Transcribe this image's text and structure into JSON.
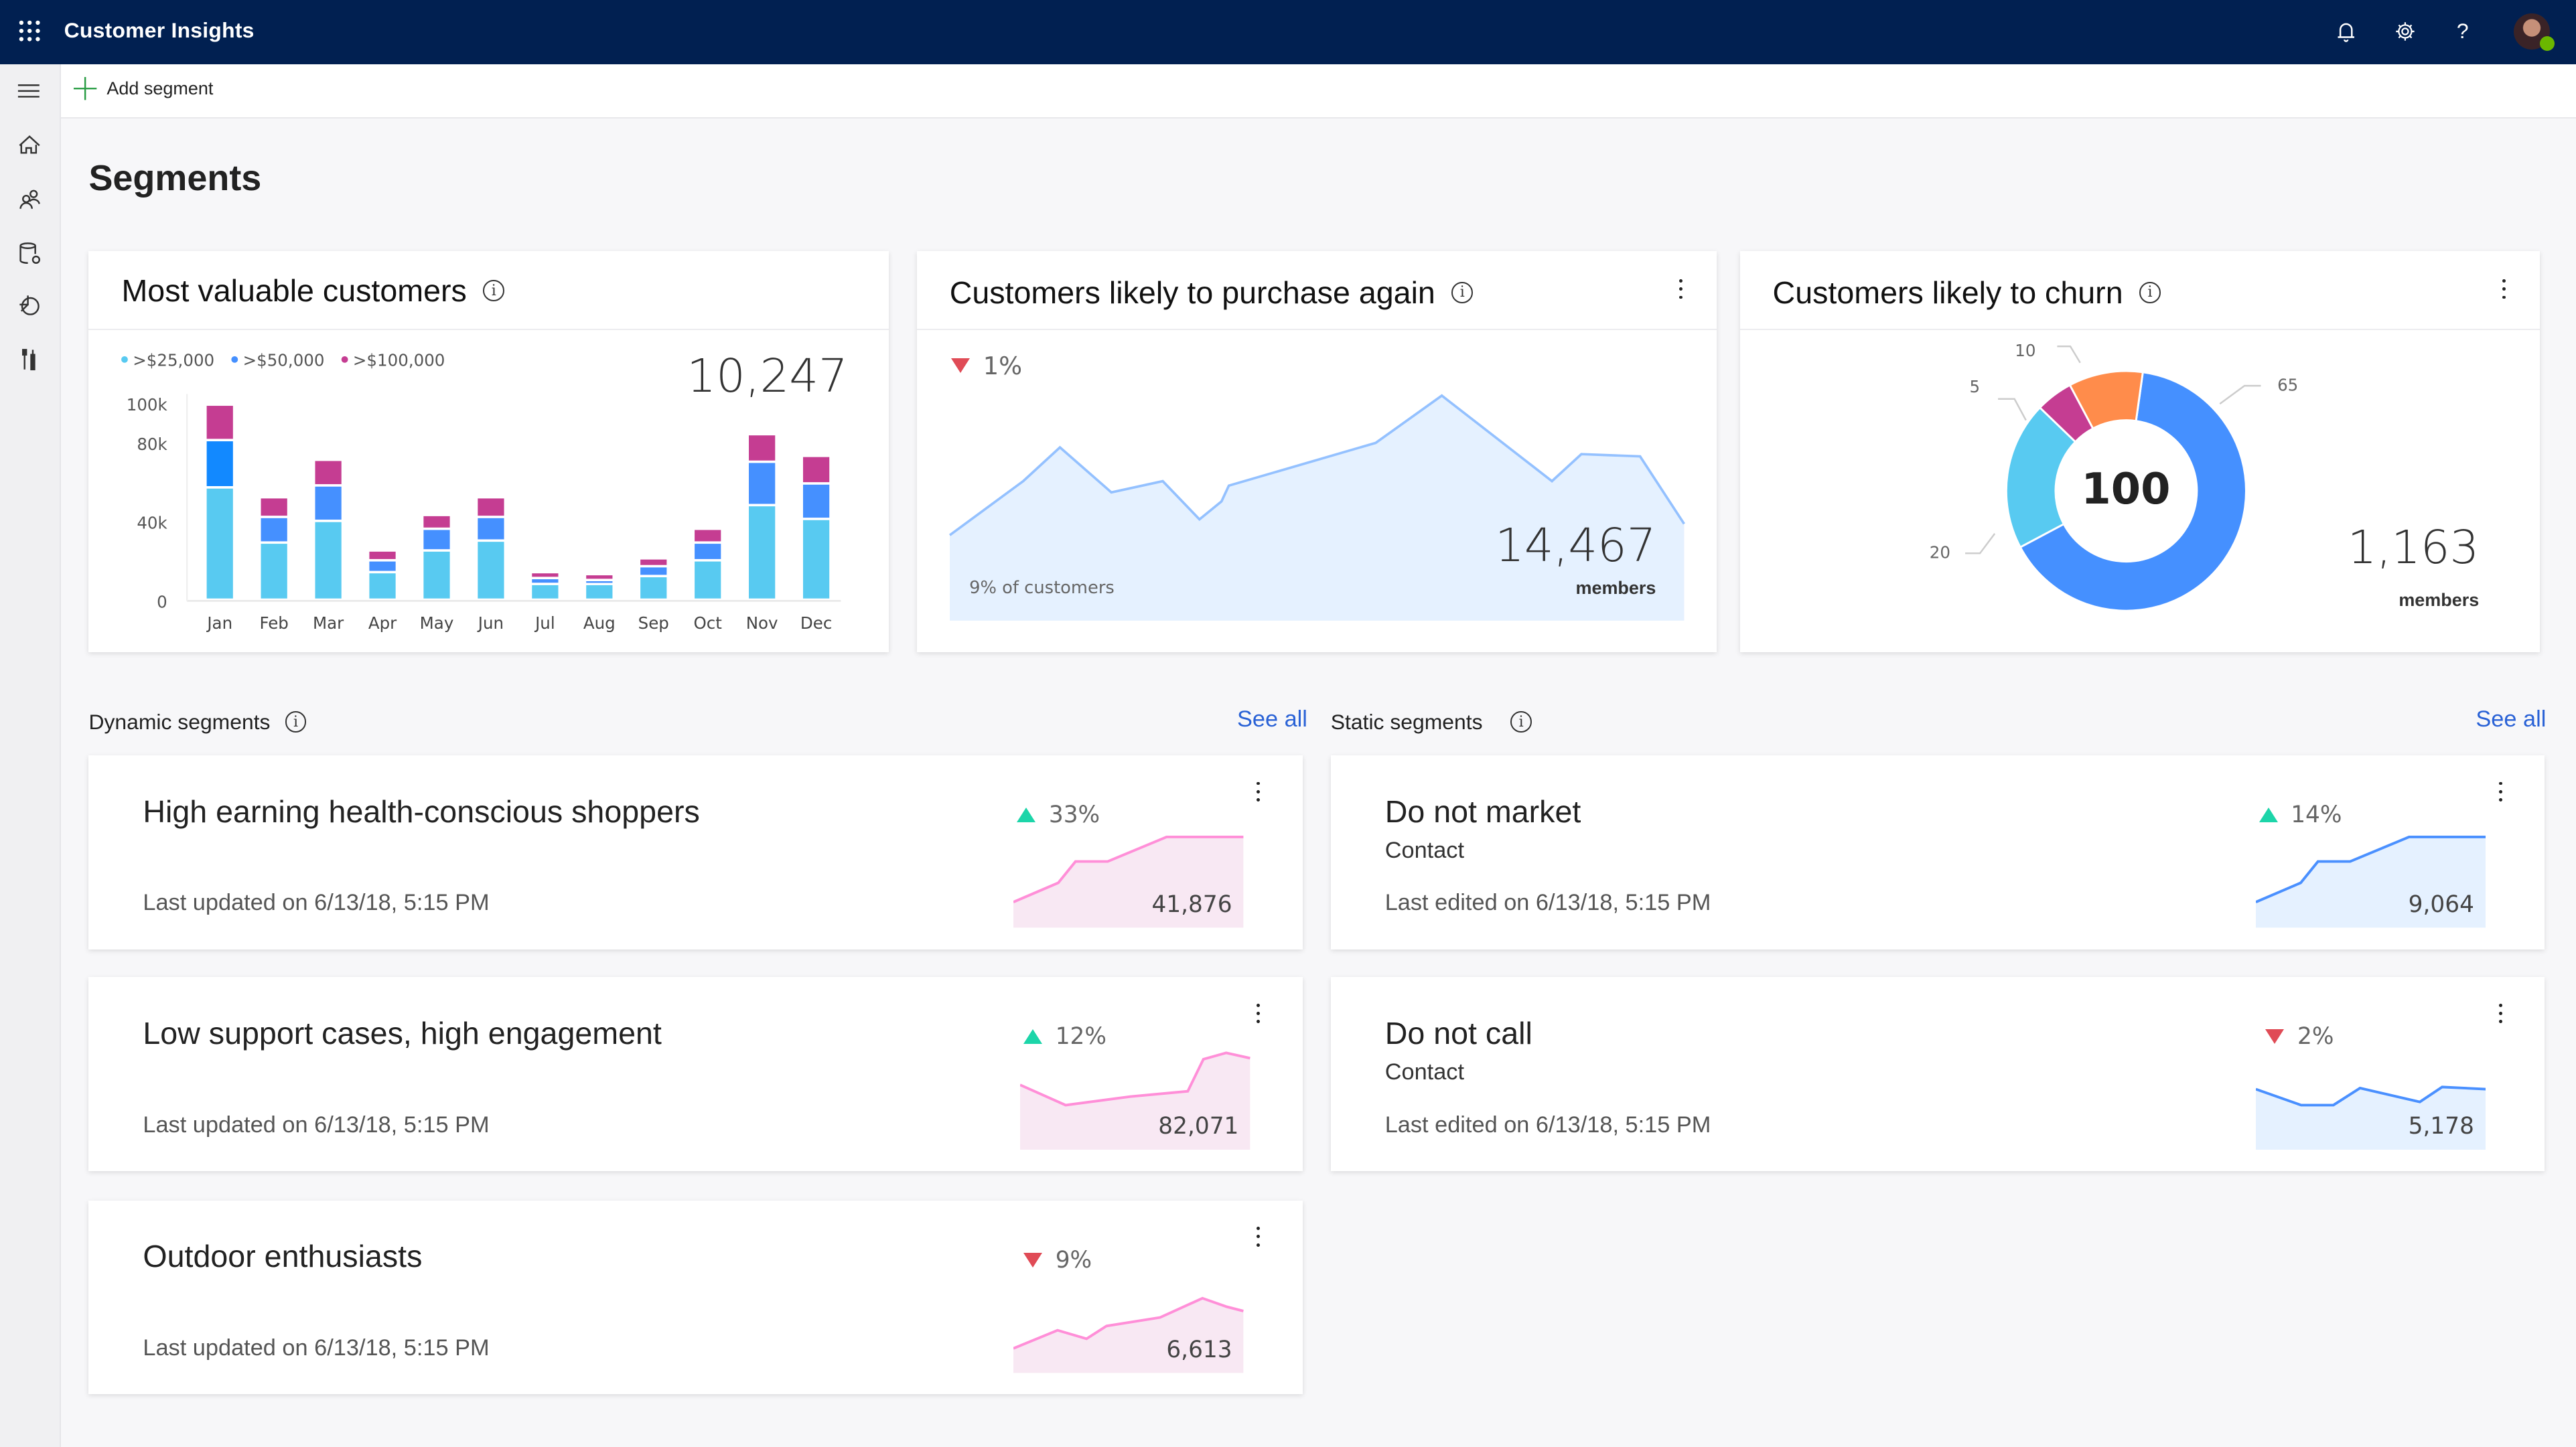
{
  "app": {
    "title": "Customer Insights",
    "avatar_status_color": "#6bb700"
  },
  "topbar_icons": [
    "waffle-icon",
    "bell-icon",
    "gear-icon",
    "help-icon",
    "avatar"
  ],
  "rail_icons": [
    "hamburger-icon",
    "home-icon",
    "people-icon",
    "database-gear-icon",
    "pie-chart-icon",
    "tools-icon"
  ],
  "command_bar": {
    "add_segment": "Add segment"
  },
  "page": {
    "title": "Segments"
  },
  "cards": {
    "valuable": {
      "title": "Most valuable customers",
      "total": "10,247"
    },
    "purchase": {
      "title": "Customers likely to purchase again",
      "trend": "1%",
      "trend_dir": "down",
      "caption": "9% of customers",
      "total": "14,467",
      "unit": "members"
    },
    "churn": {
      "title": "Customers likely to churn",
      "center": "100",
      "total": "1,163",
      "unit": "members"
    }
  },
  "chart_data": [
    {
      "type": "bar",
      "stacked": true,
      "title": "Most valuable customers",
      "categories": [
        "Jan",
        "Feb",
        "Mar",
        "Apr",
        "May",
        "Jun",
        "Jul",
        "Aug",
        "Sep",
        "Oct",
        "Nov",
        "Dec"
      ],
      "series": [
        {
          "name": ">$25,000",
          "color": "#58caf1",
          "values": [
            57,
            29,
            40,
            14,
            25,
            30,
            8,
            8,
            12,
            20,
            48,
            41
          ]
        },
        {
          "name": ">$50,000",
          "color": "#4590ff",
          "values": [
            24,
            13,
            18,
            6,
            11,
            12,
            3,
            2,
            5,
            9,
            22,
            18
          ]
        },
        {
          "name": ">$100,000",
          "color": "#c53d92",
          "values": [
            18,
            10,
            13,
            5,
            7,
            10,
            3,
            3,
            4,
            7,
            14,
            14
          ]
        }
      ],
      "yticks": [
        "0",
        "40k",
        "80k",
        "100k"
      ],
      "ytick_values": [
        0,
        40,
        80,
        100
      ],
      "ylim": [
        0,
        100
      ],
      "yunit": "k",
      "legend": "top-left",
      "grid": false
    },
    {
      "type": "area",
      "title": "Customers likely to purchase again",
      "color": "#94c1ff",
      "fill": "#e5f1ff",
      "x": [
        0,
        10,
        15,
        22,
        29,
        34,
        37,
        38,
        58,
        67,
        82,
        86,
        94,
        100
      ],
      "values": [
        38,
        62,
        77,
        57,
        62,
        45,
        53,
        60,
        79,
        100,
        62,
        74,
        73,
        43
      ]
    },
    {
      "type": "pie",
      "donut": true,
      "title": "Customers likely to churn",
      "labels": [
        "65",
        "20",
        "5",
        "10"
      ],
      "values": [
        65,
        20,
        5,
        10
      ],
      "colors": [
        "#4590ff",
        "#58caf1",
        "#c53d92",
        "#ff8c4b"
      ],
      "center_label": "100"
    }
  ],
  "dynamic": {
    "label": "Dynamic segments",
    "see_all": "See all",
    "items": [
      {
        "title": "High earning health-conscious shoppers",
        "updated": "Last updated on 6/13/18, 5:15 PM",
        "trend": "33%",
        "trend_dir": "up",
        "count": "41,876",
        "color": "#ff8fd8",
        "fill": "#f8e8f3",
        "x": [
          0,
          19.5,
          27,
          41,
          66.6,
          100
        ],
        "values": [
          24,
          42,
          62,
          62,
          85,
          85
        ]
      },
      {
        "title": "Low support cases, high engagement",
        "updated": "Last updated on 6/13/18, 5:15 PM",
        "trend": "12%",
        "trend_dir": "up",
        "count": "82,071",
        "color": "#ff8fd8",
        "fill": "#f8e8f3",
        "x": [
          0,
          19.8,
          47.9,
          72.9,
          79.7,
          89.6,
          100
        ],
        "values": [
          61,
          42,
          50,
          55,
          85,
          91,
          86
        ]
      },
      {
        "title": "Outdoor enthusiasts",
        "updated": "Last updated on 6/13/18, 5:15 PM",
        "trend": "9%",
        "trend_dir": "down",
        "count": "6,613",
        "color": "#ff8fd8",
        "fill": "#f8e8f3",
        "x": [
          0,
          19.2,
          31.8,
          40.5,
          63.8,
          82.2,
          92.8,
          100
        ],
        "values": [
          23,
          40,
          32,
          44,
          52,
          70,
          62,
          58
        ]
      }
    ]
  },
  "static": {
    "label": "Static segments",
    "see_all": "See all",
    "items": [
      {
        "title": "Do not market",
        "subtitle": "Contact",
        "updated": "Last edited on 6/13/18, 5:15 PM",
        "trend": "14%",
        "trend_dir": "up",
        "count": "9,064",
        "color": "#4a90ff",
        "fill": "#e5f1ff",
        "x": [
          0,
          19.5,
          27,
          41,
          66.6,
          100
        ],
        "values": [
          24,
          42,
          62,
          62,
          85,
          85
        ]
      },
      {
        "title": "Do not call",
        "subtitle": "Contact",
        "updated": "Last edited on 6/13/18, 5:15 PM",
        "trend": "2%",
        "trend_dir": "down",
        "count": "5,178",
        "color": "#4a90ff",
        "fill": "#e5f1ff",
        "x": [
          0,
          19.7,
          33.7,
          45.3,
          71.3,
          81,
          100
        ],
        "values": [
          57,
          42,
          42,
          58,
          45,
          59,
          57
        ]
      }
    ]
  }
}
